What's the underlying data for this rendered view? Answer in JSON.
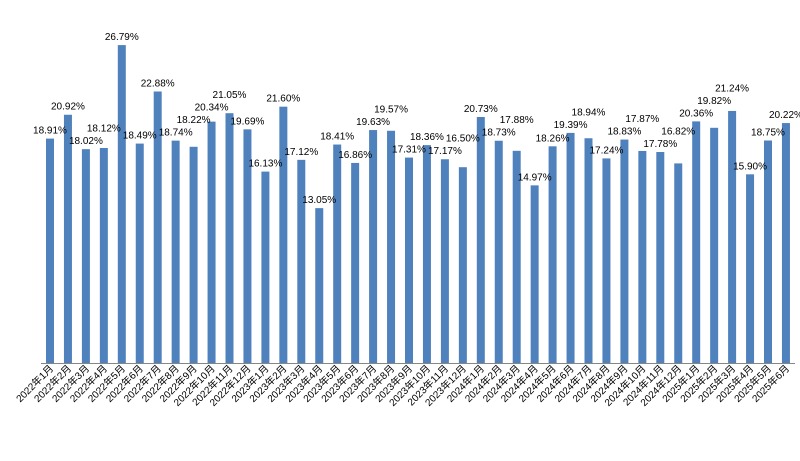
{
  "chart_data": {
    "type": "bar",
    "title": "",
    "xlabel": "",
    "ylabel": "",
    "ylim": [
      0,
      30
    ],
    "grid": false,
    "legend": "none",
    "bar_color": "#4F81BD",
    "value_suffix": "%",
    "categories": [
      "2022年1月",
      "2022年2月",
      "2022年3月",
      "2022年4月",
      "2022年5月",
      "2022年6月",
      "2022年7月",
      "2022年8月",
      "2022年9月",
      "2022年10月",
      "2022年11月",
      "2022年12月",
      "2023年1月",
      "2023年2月",
      "2023年3月",
      "2023年4月",
      "2023年5月",
      "2023年6月",
      "2023年7月",
      "2023年8月",
      "2023年9月",
      "2023年10月",
      "2023年11月",
      "2023年12月",
      "2024年1月",
      "2024年2月",
      "2024年3月",
      "2024年4月",
      "2024年5月",
      "2024年6月",
      "2024年7月",
      "2024年8月",
      "2024年9月",
      "2024年10月",
      "2024年11月",
      "2024年12月",
      "2025年1月",
      "2025年2月",
      "2025年3月",
      "2025年4月",
      "2025年5月",
      "2025年6月"
    ],
    "values": [
      18.91,
      20.92,
      18.02,
      18.12,
      26.79,
      18.49,
      22.88,
      18.74,
      18.22,
      20.34,
      21.05,
      19.69,
      16.13,
      21.6,
      17.12,
      13.05,
      18.41,
      16.86,
      19.63,
      19.57,
      17.31,
      18.36,
      17.17,
      16.5,
      20.73,
      18.73,
      17.88,
      14.97,
      18.26,
      19.39,
      18.94,
      17.24,
      18.83,
      17.87,
      17.78,
      16.82,
      20.36,
      19.82,
      21.24,
      15.9,
      18.75,
      20.22
    ],
    "labels": [
      "18.91%",
      "20.92%",
      "18.02%",
      "18.12%",
      "26.79%",
      "18.49%",
      "22.88%",
      "18.74%",
      "18.22%",
      "20.34%",
      "21.05%",
      "19.69%",
      "16.13%",
      "21.60%",
      "17.12%",
      "13.05%",
      "18.41%",
      "16.86%",
      "19.63%",
      "19.57%",
      "17.31%",
      "18.36%",
      "17.17%",
      "16.50%",
      "20.73%",
      "18.73%",
      "17.88%",
      "14.97%",
      "18.26%",
      "19.39%",
      "18.94%",
      "17.24%",
      "18.83%",
      "17.87%",
      "17.78%",
      "16.82%",
      "20.36%",
      "19.82%",
      "21.24%",
      "15.90%",
      "18.75%",
      "20.22%"
    ]
  }
}
